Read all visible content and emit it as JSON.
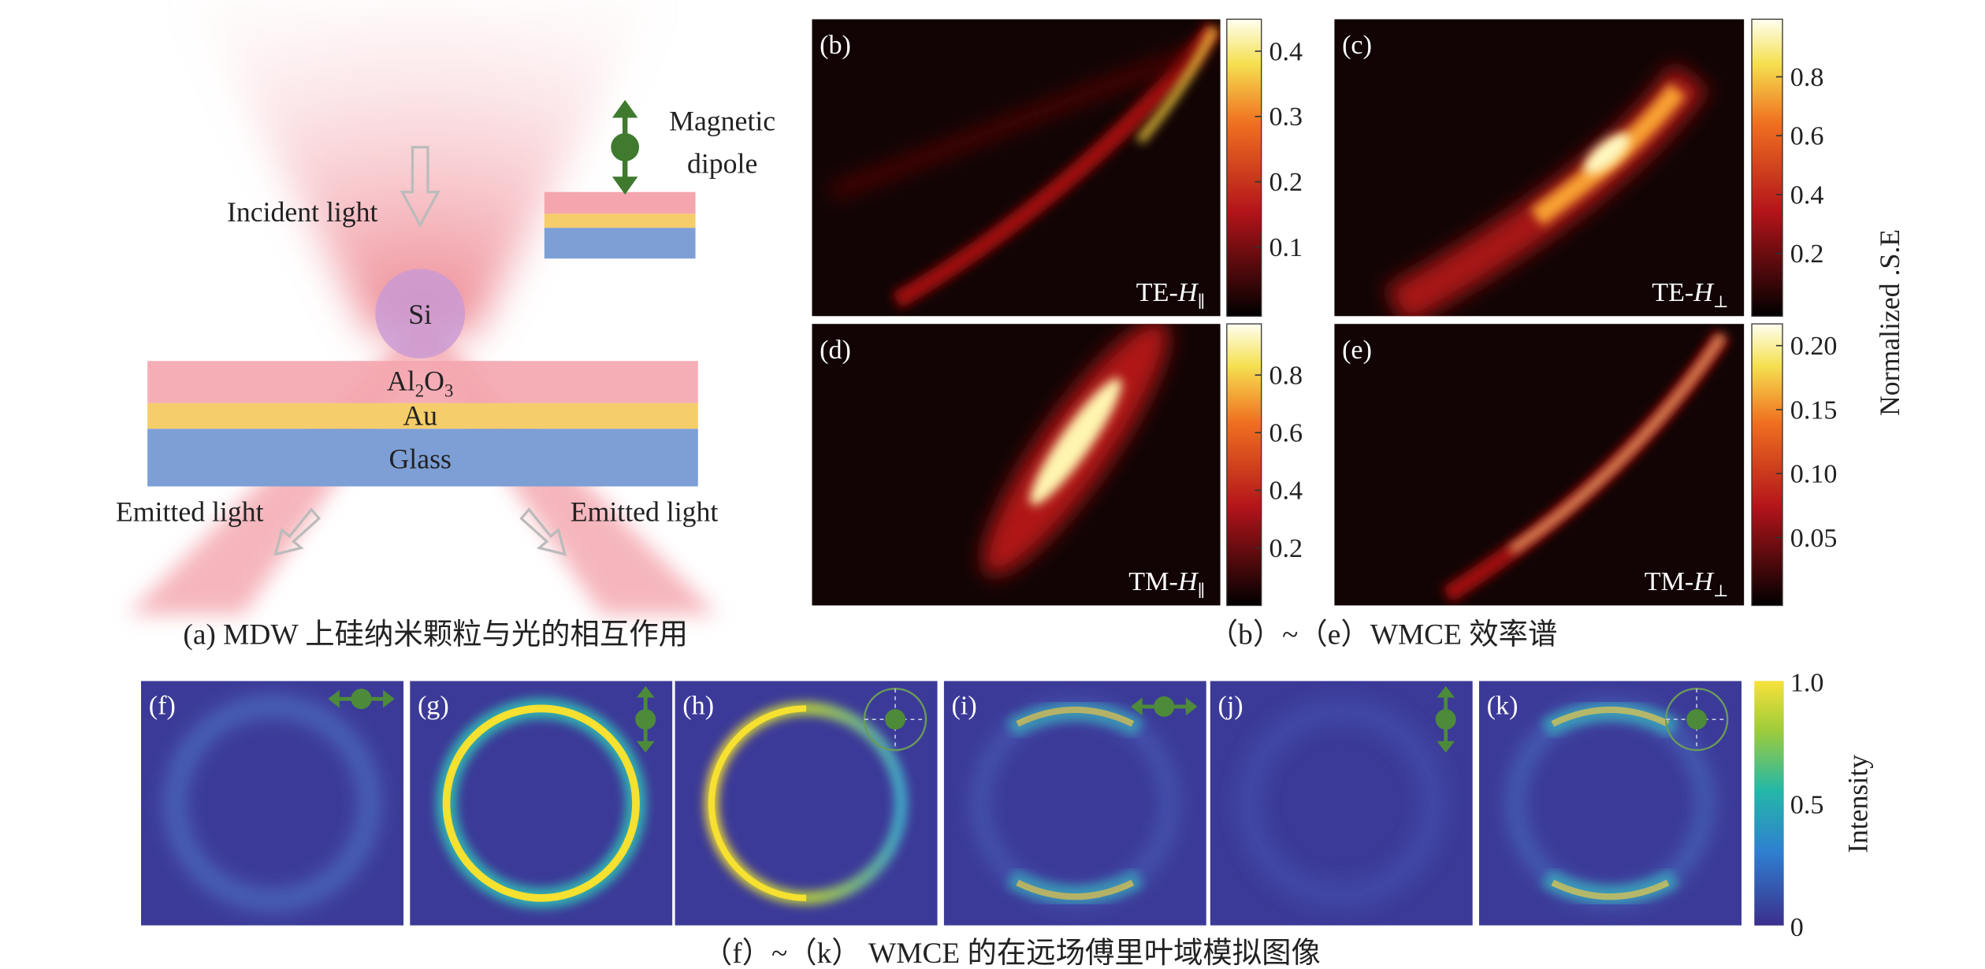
{
  "panel_a": {
    "incident_light": "Incident light",
    "magnetic": "Magnetic",
    "dipole": "dipole",
    "si": "Si",
    "al2o3": {
      "a": "Al",
      "b": "2",
      "c": "O",
      "d": "3"
    },
    "au": "Au",
    "glass": "Glass",
    "emitted_left": "Emitted light",
    "emitted_right": "Emitted light",
    "caption": "(a) MDW 上硅纳米颗粒与光的相互作用"
  },
  "spectra": {
    "panels": [
      {
        "label": "(b)",
        "mode": "TE-",
        "var": "H",
        "sub": "∥",
        "colorbar_ticks": [
          "0.4",
          "0.3",
          "0.2",
          "0.1"
        ]
      },
      {
        "label": "(c)",
        "mode": "TE-",
        "var": "H",
        "sub": "⊥",
        "colorbar_ticks": [
          "0.8",
          "0.6",
          "0.4",
          "0.2"
        ]
      },
      {
        "label": "(d)",
        "mode": "TM-",
        "var": "H",
        "sub": "∥",
        "colorbar_ticks": [
          "0.8",
          "0.6",
          "0.4",
          "0.2"
        ]
      },
      {
        "label": "(e)",
        "mode": "TM-",
        "var": "H",
        "sub": "⊥",
        "colorbar_ticks": [
          "0.20",
          "0.15",
          "0.10",
          "0.05"
        ]
      }
    ],
    "colorbar_title": "Normalized .S.E",
    "caption": "（b）~（e）WMCE 效率谱"
  },
  "far_field": {
    "panels": [
      "(f)",
      "(g)",
      "(h)",
      "(i)",
      "(j)",
      "(k)"
    ],
    "colorbar_ticks": [
      "1.0",
      "0.5",
      "0"
    ],
    "colorbar_title": "Intensity",
    "caption": "（f）~（k） WMCE 的在远场傅里叶域模拟图像"
  }
}
